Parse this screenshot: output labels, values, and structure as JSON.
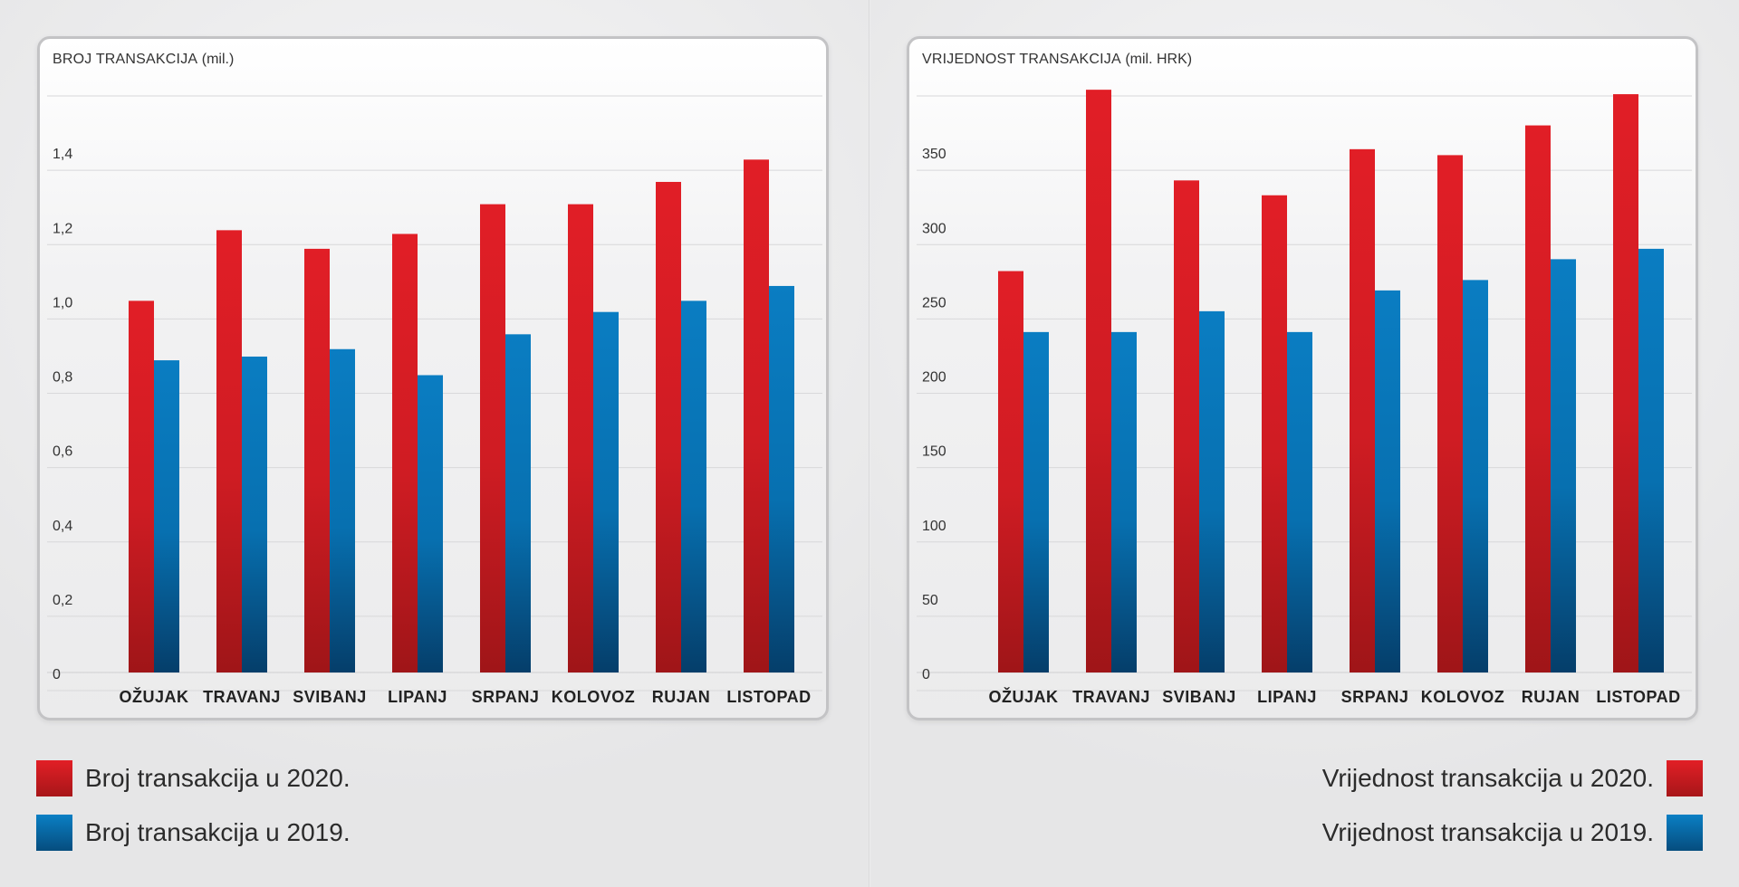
{
  "chart_data": [
    {
      "type": "bar",
      "title": "BROJ TRANSAKCIJA",
      "unit": "(mil.)",
      "categories": [
        "OŽUJAK",
        "TRAVANJ",
        "SVIBANJ",
        "LIPANJ",
        "SRPANJ",
        "KOLOVOZ",
        "RUJAN",
        "LISTOPAD"
      ],
      "series": [
        {
          "name": "Broj transakcija u 2020.",
          "color": "#d71f26",
          "values": [
            1.0,
            1.19,
            1.14,
            1.18,
            1.26,
            1.26,
            1.32,
            1.38
          ]
        },
        {
          "name": "Broj transakcija u 2019.",
          "color": "#0574b8",
          "values": [
            0.84,
            0.85,
            0.87,
            0.8,
            0.91,
            0.97,
            1.0,
            1.04
          ]
        }
      ],
      "yticks": [
        0,
        0.2,
        0.4,
        0.6,
        0.8,
        1.0,
        1.2,
        1.4
      ],
      "ytick_labels": [
        "0",
        "0,2",
        "0,4",
        "0,6",
        "0,8",
        "1,0",
        "1,2",
        "1,4"
      ],
      "ylim": [
        0,
        1.6
      ],
      "grid": true,
      "legend": "bottom-left"
    },
    {
      "type": "bar",
      "title": "VRIJEDNOST TRANSAKCIJA",
      "unit": "(mil. HRK)",
      "categories": [
        "OŽUJAK",
        "TRAVANJ",
        "SVIBANJ",
        "LIPANJ",
        "SRPANJ",
        "KOLOVOZ",
        "RUJAN",
        "LISTOPAD"
      ],
      "series": [
        {
          "name": "Vrijednost transakcija u 2020.",
          "color": "#d71f26",
          "values": [
            270,
            392,
            331,
            321,
            352,
            348,
            368,
            389
          ]
        },
        {
          "name": "Vrijednost transakcija u 2019.",
          "color": "#0574b8",
          "values": [
            229,
            229,
            243,
            229,
            257,
            264,
            278,
            285
          ]
        }
      ],
      "yticks": [
        0,
        50,
        100,
        150,
        200,
        250,
        300,
        350
      ],
      "ytick_labels": [
        "0",
        "50",
        "100",
        "150",
        "200",
        "250",
        "300",
        "350"
      ],
      "ylim": [
        0,
        400
      ],
      "grid": true,
      "legend": "bottom-right"
    }
  ]
}
